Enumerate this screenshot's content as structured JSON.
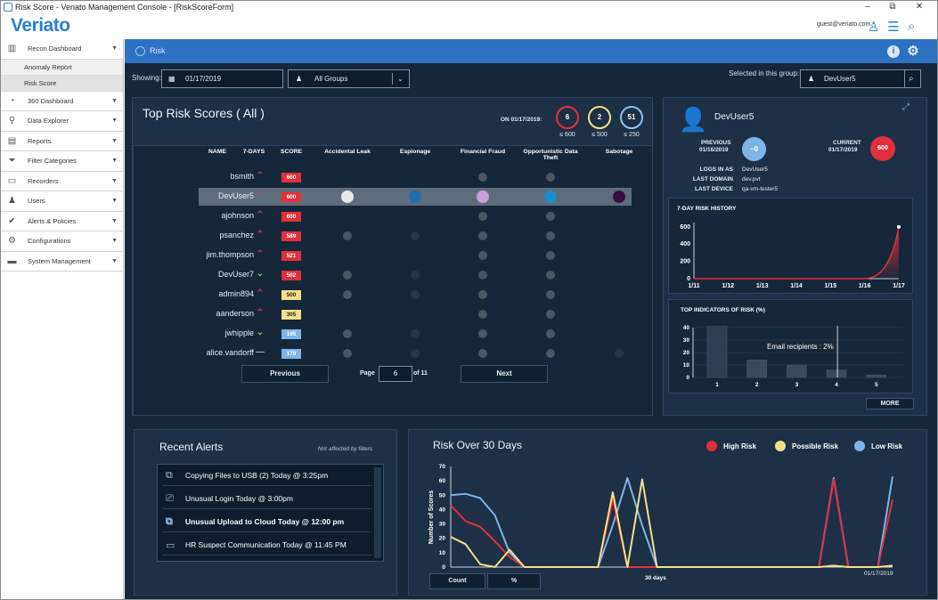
{
  "window": {
    "title": "Risk Score - Veriato Management Console - [RiskScoreForm]"
  },
  "app": {
    "logo": "Veriato",
    "user_email": "guest@veriato.com"
  },
  "sidebar": {
    "items": [
      {
        "label": "Recon Dashboard",
        "icon": "chart-icon"
      },
      {
        "label": "360 Dashboard",
        "icon": "gauge-icon"
      },
      {
        "label": "Data Explorer",
        "icon": "binoculars-icon"
      },
      {
        "label": "Reports",
        "icon": "reports-icon"
      },
      {
        "label": "Filter Categories",
        "icon": "filter-icon"
      },
      {
        "label": "Recorders",
        "icon": "monitor-icon"
      },
      {
        "label": "Users",
        "icon": "users-icon"
      },
      {
        "label": "Alerts & Policies",
        "icon": "check-icon"
      },
      {
        "label": "Configurations",
        "icon": "gears-icon"
      },
      {
        "label": "System Management",
        "icon": "briefcase-icon"
      }
    ],
    "subitems": [
      "Anomaly Report",
      "Risk Score"
    ]
  },
  "header": {
    "title": "Risk"
  },
  "filters": {
    "showing_label": "Showing:",
    "date": "01/17/2019",
    "group": "All Groups",
    "selected_label": "Selected in this group:",
    "selected_user": "DevUser5"
  },
  "top_risk": {
    "title": "Top Risk Scores ( All )",
    "on_date": "ON 01/17/2019:",
    "summary": [
      {
        "count": "6",
        "label": "≤ 600",
        "color": "#e0303b"
      },
      {
        "count": "2",
        "label": "≤ 500",
        "color": "#f4e08a"
      },
      {
        "count": "51",
        "label": "≤ 250",
        "color": "#8fc3ec"
      }
    ],
    "columns": [
      "NAME",
      "7-DAYS",
      "SCORE",
      "Accidental Leak",
      "Espionage",
      "Financial Fraud",
      "Opportunistic Data Theft",
      "Sabotage"
    ],
    "rows": [
      {
        "name": "bsmith",
        "trend": "up",
        "score": "600",
        "level": "high",
        "dots": [
          0,
          0,
          1,
          1,
          0
        ]
      },
      {
        "name": "DevUser5",
        "trend": "up",
        "score": "600",
        "level": "high",
        "dots": [
          1,
          1,
          1,
          1,
          1
        ],
        "selected": true
      },
      {
        "name": "ajohnson",
        "trend": "up",
        "score": "600",
        "level": "high",
        "dots": [
          0,
          0,
          1,
          1,
          0
        ]
      },
      {
        "name": "psanchez",
        "trend": "up",
        "score": "589",
        "level": "high",
        "dots": [
          1,
          2,
          1,
          1,
          0
        ]
      },
      {
        "name": "jim.thompson",
        "trend": "up",
        "score": "521",
        "level": "high",
        "dots": [
          0,
          0,
          1,
          1,
          0
        ]
      },
      {
        "name": "DevUser7",
        "trend": "down",
        "score": "502",
        "level": "high",
        "dots": [
          1,
          2,
          1,
          1,
          0
        ]
      },
      {
        "name": "admin894",
        "trend": "up",
        "score": "500",
        "level": "mid",
        "dots": [
          1,
          2,
          1,
          1,
          0
        ]
      },
      {
        "name": "aanderson",
        "trend": "up",
        "score": "305",
        "level": "mid",
        "dots": [
          0,
          0,
          1,
          1,
          0
        ]
      },
      {
        "name": "jwhipple",
        "trend": "down",
        "score": "195",
        "level": "low",
        "dots": [
          1,
          2,
          1,
          1,
          0
        ]
      },
      {
        "name": "alice.vandorff",
        "trend": "flat",
        "score": "179",
        "level": "low",
        "dots": [
          1,
          2,
          1,
          1,
          2
        ]
      }
    ],
    "pager": {
      "previous": "Previous",
      "page_label": "Page",
      "page": "6",
      "of": "of 11",
      "next": "Next"
    }
  },
  "user_card": {
    "name": "DevUser5",
    "previous_label": "PREVIOUS",
    "previous_date": "01/16/2019",
    "previous_value": "~0",
    "current_label": "CURRENT",
    "current_date": "01/17/2019",
    "current_value": "600",
    "details": [
      {
        "k": "LOGS IN AS",
        "v": "DevUser5"
      },
      {
        "k": "LAST DOMAIN",
        "v": "dev.pvt"
      },
      {
        "k": "LAST DEVICE",
        "v": "qa-vm-tester5"
      }
    ]
  },
  "history": {
    "title": "7-DAY RISK HISTORY",
    "yticks": [
      "600",
      "400",
      "200",
      "0"
    ],
    "xticks": [
      "1/11",
      "1/12",
      "1/13",
      "1/14",
      "1/15",
      "1/16",
      "1/17"
    ]
  },
  "indicators": {
    "title": "TOP INDICATORS OF RISK (%)",
    "yticks": [
      "40",
      "30",
      "20",
      "10",
      "0"
    ],
    "xticks": [
      "1",
      "2",
      "3",
      "4",
      "5"
    ],
    "tooltip": "Email recipients : 2%",
    "more": "MORE"
  },
  "alerts": {
    "title": "Recent Alerts",
    "note": "Not affected by filters",
    "items": [
      {
        "text": "Copying Files to USB (2)",
        "time": "Today @ 3:25pm",
        "bold": false
      },
      {
        "text": "Unusual Login",
        "time": "Today @ 3:00pm",
        "bold": false
      },
      {
        "text": "Unusual Upload to Cloud",
        "time": "Today @ 12:00 pm",
        "bold": true
      },
      {
        "text": "HR Suspect Communication",
        "time": "Today @ 11:45 PM",
        "bold": false
      }
    ]
  },
  "risk30": {
    "title": "Risk Over 30 Days",
    "legend": [
      "High Risk",
      "Possible Risk",
      "Low Risk"
    ],
    "ylabel": "Number of Scores",
    "yticks": [
      "70",
      "60",
      "50",
      "40",
      "30",
      "20",
      "10",
      "0"
    ],
    "xlabel": "30 days",
    "end_date": "01/17/2019",
    "count_btn": "Count",
    "pct_btn": "%"
  },
  "chart_data": [
    {
      "type": "line",
      "title": "7-DAY RISK HISTORY",
      "categories": [
        "1/11",
        "1/12",
        "1/13",
        "1/14",
        "1/15",
        "1/16",
        "1/17"
      ],
      "series": [
        {
          "values": [
            0,
            0,
            0,
            0,
            0,
            0,
            600
          ]
        }
      ],
      "ylim": [
        0,
        650
      ]
    },
    {
      "type": "bar",
      "title": "TOP INDICATORS OF RISK (%)",
      "categories": [
        "1",
        "2",
        "3",
        "4",
        "5"
      ],
      "values": [
        41,
        14,
        10,
        6,
        2
      ],
      "ylim": [
        0,
        40
      ]
    },
    {
      "type": "line",
      "title": "Risk Over 30 Days",
      "ylabel": "Number of Scores",
      "xlabel": "30 days",
      "ylim": [
        0,
        70
      ],
      "series": [
        {
          "name": "High Risk",
          "color": "#e0303b",
          "values": [
            43,
            32,
            28,
            18,
            7,
            0,
            0,
            0,
            0,
            0,
            0,
            47,
            0,
            0,
            0,
            0,
            0,
            0,
            0,
            0,
            0,
            0,
            0,
            0,
            0,
            0,
            61,
            0,
            0,
            0,
            47
          ]
        },
        {
          "name": "Possible Risk",
          "color": "#f4e08a",
          "values": [
            21,
            16,
            2,
            0,
            12,
            0,
            0,
            0,
            0,
            0,
            0,
            52,
            0,
            61,
            0,
            0,
            0,
            0,
            0,
            0,
            0,
            0,
            0,
            0,
            0,
            0,
            1,
            0,
            0,
            0,
            1
          ]
        },
        {
          "name": "Low Risk",
          "color": "#7fb4e6",
          "values": [
            50,
            51,
            48,
            36,
            10,
            0,
            0,
            0,
            0,
            0,
            0,
            29,
            62,
            29,
            0,
            0,
            0,
            0,
            0,
            0,
            0,
            0,
            0,
            0,
            0,
            0,
            62,
            0,
            0,
            0,
            63
          ]
        }
      ]
    }
  ]
}
